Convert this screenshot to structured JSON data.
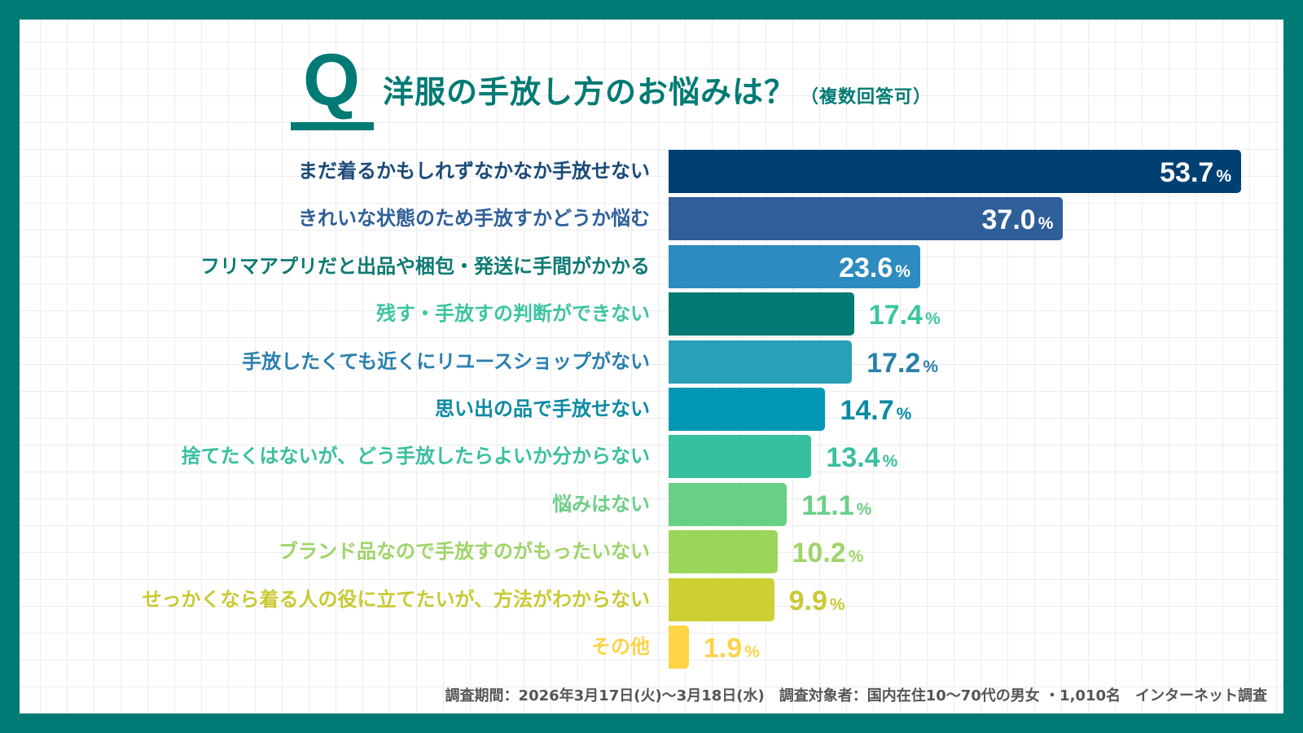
{
  "chart_data": {
    "type": "bar",
    "orientation": "horizontal",
    "title": "洋服の手放し方のお悩みは？",
    "subtitle": "（複数回答可）",
    "title_marker": "Q",
    "unit": "%",
    "categories": [
      "まだ着るかもしれずなかなか手放せない",
      "きれいな状態のため手放すかどうか悩む",
      "フリマアプリだと出品や梱包・発送に手間がかかる",
      "残す・手放すの判断ができない",
      "手放したくても近くにリユースショップがない",
      "思い出の品で手放せない",
      "捨てたくはないが、どう手放したらよいか分からない",
      "悩みはない",
      "ブランド品なので手放すのがもったいない",
      "せっかくなら着る人の役に立てたいが、方法がわからない",
      "その他"
    ],
    "values": [
      53.7,
      37.0,
      23.6,
      17.4,
      17.2,
      14.7,
      13.4,
      11.1,
      10.2,
      9.9,
      1.9
    ],
    "value_labels": [
      "53.7",
      "37.0",
      "23.6",
      "17.4",
      "17.2",
      "14.7",
      "13.4",
      "11.1",
      "10.2",
      "9.9",
      "1.9"
    ],
    "bar_colors": [
      "#003f72",
      "#2f5f98",
      "#2e8bbf",
      "#007a73",
      "#2aa0b8",
      "#0098b4",
      "#35c0a0",
      "#68d085",
      "#9bd65c",
      "#cdd033",
      "#fdd545"
    ],
    "label_colors": [
      "#1a4a78",
      "#2f5f98",
      "#0e7a74",
      "#3cc4a0",
      "#2a80ad",
      "#0a8aa3",
      "#3abfa0",
      "#6ccf87",
      "#9fd468",
      "#c9c933",
      "#fcd34a"
    ],
    "grid": true,
    "xlim": [
      0,
      53.7
    ]
  },
  "footer": "調査期間：2026年3月17日(火)〜3月18日(水)　調査対象者：国内在住10〜70代の男女 ・1,010名　インターネット調査",
  "colors": {
    "frame": "#007a74",
    "title": "#007a74"
  }
}
